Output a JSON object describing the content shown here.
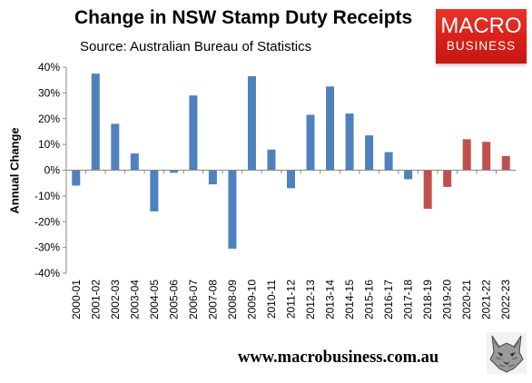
{
  "chart_data": {
    "type": "bar",
    "title": "Change in NSW Stamp Duty Receipts",
    "subtitle": "Source: Australian Bureau of Statistics",
    "xlabel": "",
    "ylabel": "Annual Change",
    "ylim": [
      -40,
      40
    ],
    "y_ticks": [
      "40%",
      "30%",
      "20%",
      "10%",
      "0%",
      "-10%",
      "-20%",
      "-30%",
      "-40%"
    ],
    "y_tick_values": [
      40,
      30,
      20,
      10,
      0,
      -10,
      -20,
      -30,
      -40
    ],
    "grid": false,
    "legend": "none",
    "categories": [
      "2000-01",
      "2001-02",
      "2002-03",
      "2003-04",
      "2004-05",
      "2005-06",
      "2006-07",
      "2007-08",
      "2008-09",
      "2009-10",
      "2010-11",
      "2011-12",
      "2012-13",
      "2013-14",
      "2014-15",
      "2015-16",
      "2016-17",
      "2017-18",
      "2018-19",
      "2019-20",
      "2020-21",
      "2021-22",
      "2022-23"
    ],
    "values": [
      -6,
      37.5,
      18,
      6.5,
      -16,
      -1,
      29,
      -5.5,
      -30.5,
      36.5,
      8,
      -7,
      21.5,
      32.5,
      22,
      13.5,
      7,
      -3.5,
      -15,
      -6.5,
      12,
      11,
      5.5
    ],
    "colors": [
      "#4f81bd",
      "#4f81bd",
      "#4f81bd",
      "#4f81bd",
      "#4f81bd",
      "#4f81bd",
      "#4f81bd",
      "#4f81bd",
      "#4f81bd",
      "#4f81bd",
      "#4f81bd",
      "#4f81bd",
      "#4f81bd",
      "#4f81bd",
      "#4f81bd",
      "#4f81bd",
      "#4f81bd",
      "#4f81bd",
      "#c0504d",
      "#c0504d",
      "#c0504d",
      "#c0504d",
      "#c0504d"
    ]
  },
  "brand": {
    "logo_top": "MACRO",
    "logo_bottom": "BUSINESS",
    "logo_color": "#e0261e",
    "website": "www.macrobusiness.com.au",
    "mascot_icon": "wolf-icon"
  }
}
